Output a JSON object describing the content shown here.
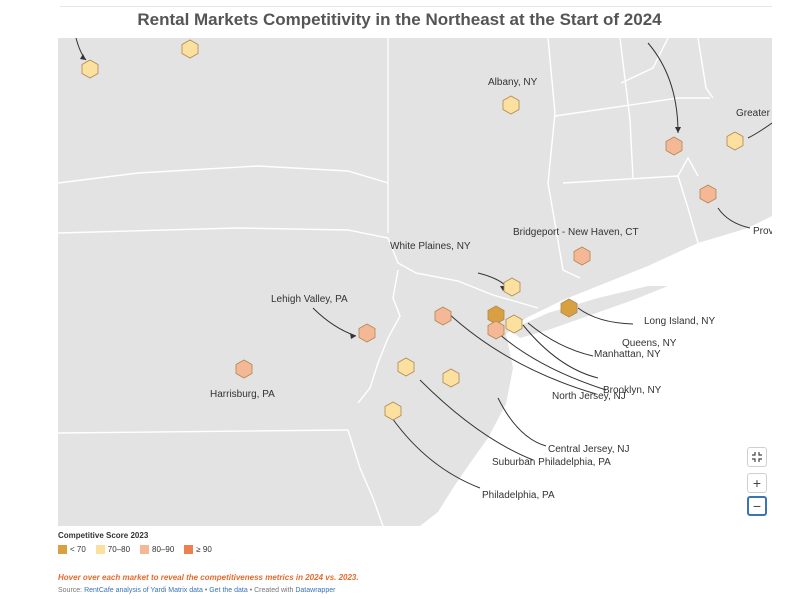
{
  "title": "Rental Markets Competitivity in the Northeast at the Start of 2024",
  "map": {
    "region": "Northeast United States",
    "colors": {
      "land": "#e3e3e3",
      "border": "#ffffff",
      "water": "#ffffff",
      "lt70": "#d8a040",
      "70to80": "#fce0a0",
      "80to90": "#f4b896",
      "gte90": "#ec8050",
      "hexStroke": "#b08850"
    },
    "markets": [
      {
        "label": "",
        "category": "70to80"
      },
      {
        "label": "",
        "category": "70to80"
      },
      {
        "label": "Albany, NY",
        "category": "70to80"
      },
      {
        "label": "",
        "category": "80to90"
      },
      {
        "label": "Greater",
        "category": "70to80"
      },
      {
        "label": "Prov",
        "category": "80to90"
      },
      {
        "label": "Bridgeport - New Haven, CT",
        "category": "80to90"
      },
      {
        "label": "White Plaines, NY",
        "category": "70to80"
      },
      {
        "label": "Long Island, NY",
        "category": "lt70"
      },
      {
        "label": "Queens, NY",
        "category": "lt70"
      },
      {
        "label": "Manhattan, NY",
        "category": "70to80"
      },
      {
        "label": "Brooklyn, NY",
        "category": "80to90"
      },
      {
        "label": "North Jersey, NJ",
        "category": "80to90"
      },
      {
        "label": "Lehigh Valley, PA",
        "category": "80to90"
      },
      {
        "label": "Harrisburg, PA",
        "category": "80to90"
      },
      {
        "label": "Central Jersey, NJ",
        "category": "70to80"
      },
      {
        "label": "Suburban Philadelphia, PA",
        "category": "70to80"
      },
      {
        "label": "Philadelphia, PA",
        "category": "70to80"
      }
    ]
  },
  "controls": {
    "fullscreen_icon": "fullscreen-collapse-icon",
    "zoom_in": "+",
    "zoom_out": "−"
  },
  "legend": {
    "title": "Competitive Score 2023",
    "items": [
      {
        "label": "< 70",
        "color": "#d8a040"
      },
      {
        "label": "70–80",
        "color": "#fce0a0"
      },
      {
        "label": "80–90",
        "color": "#f4b896"
      },
      {
        "label": "≥ 90",
        "color": "#ec8050"
      }
    ]
  },
  "notes": "Hover over each market to reveal the competitiveness metrics in 2024 vs. 2023.",
  "source": {
    "prefix": "Source: ",
    "link1": "RentCafe analysis of Yardi Matrix data",
    "sep1": " • ",
    "link2": "Get the data",
    "sep2": " • Created with ",
    "link3": "Datawrapper"
  }
}
